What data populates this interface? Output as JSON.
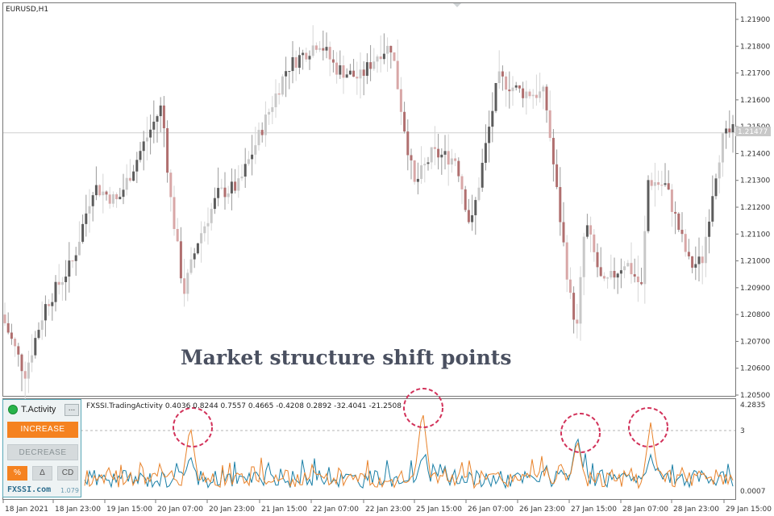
{
  "chart_data": [
    {
      "type": "candlestick",
      "title": "EURUSD,H1",
      "ylim": [
        1.2045,
        1.2198
      ],
      "yticks": [
        "1.21900",
        "1.21800",
        "1.21700",
        "1.21600",
        "1.21500",
        "1.21400",
        "1.21300",
        "1.21200",
        "1.21100",
        "1.21000",
        "1.20900",
        "1.20800",
        "1.20700",
        "1.20600",
        "1.20500"
      ],
      "ytick_values": [
        1.219,
        1.218,
        1.217,
        1.216,
        1.215,
        1.214,
        1.213,
        1.212,
        1.211,
        1.21,
        1.209,
        1.208,
        1.207,
        1.206,
        1.205
      ],
      "current_price": "1.21477",
      "current_price_value": 1.21477,
      "annotation": "Market structure shift points"
    },
    {
      "type": "line",
      "title": "FXSSI.TradingActivity 0.4036 0.8244 0.7557 0.4665 -0.4208 0.2892 -32.4041 -21.2508",
      "yticks": [
        "4.2835",
        "3",
        "0.0007"
      ],
      "ytick_values": [
        4.2835,
        3,
        0.0007
      ],
      "series": [
        {
          "color": "#1a7fa6"
        },
        {
          "color": "#e8822a"
        }
      ],
      "highlighted_peaks": 4
    }
  ],
  "x_labels": [
    "18 Jan 2021",
    "18 Jan 23:00",
    "19 Jan 15:00",
    "20 Jan 07:00",
    "20 Jan 23:00",
    "21 Jan 15:00",
    "22 Jan 07:00",
    "22 Jan 23:00",
    "25 Jan 15:00",
    "26 Jan 07:00",
    "26 Jan 23:00",
    "27 Jan 15:00",
    "28 Jan 07:00",
    "28 Jan 23:00",
    "29 Jan 15:00"
  ],
  "colors": {
    "bull": "#5c5c5c",
    "bull_light": "#c8c8c8",
    "bear": "#b06f6f",
    "bear_light": "#d8a7a7",
    "circle": "#d2325a",
    "accent": "#f58220"
  },
  "panel": {
    "title": "T.Activity",
    "more": "...",
    "increase": "INCREASE",
    "decrease": "DECREASE",
    "pct": "%",
    "delta": "Δ",
    "cd": "CD",
    "brand": "FXSSI.com",
    "version": "1.079"
  }
}
